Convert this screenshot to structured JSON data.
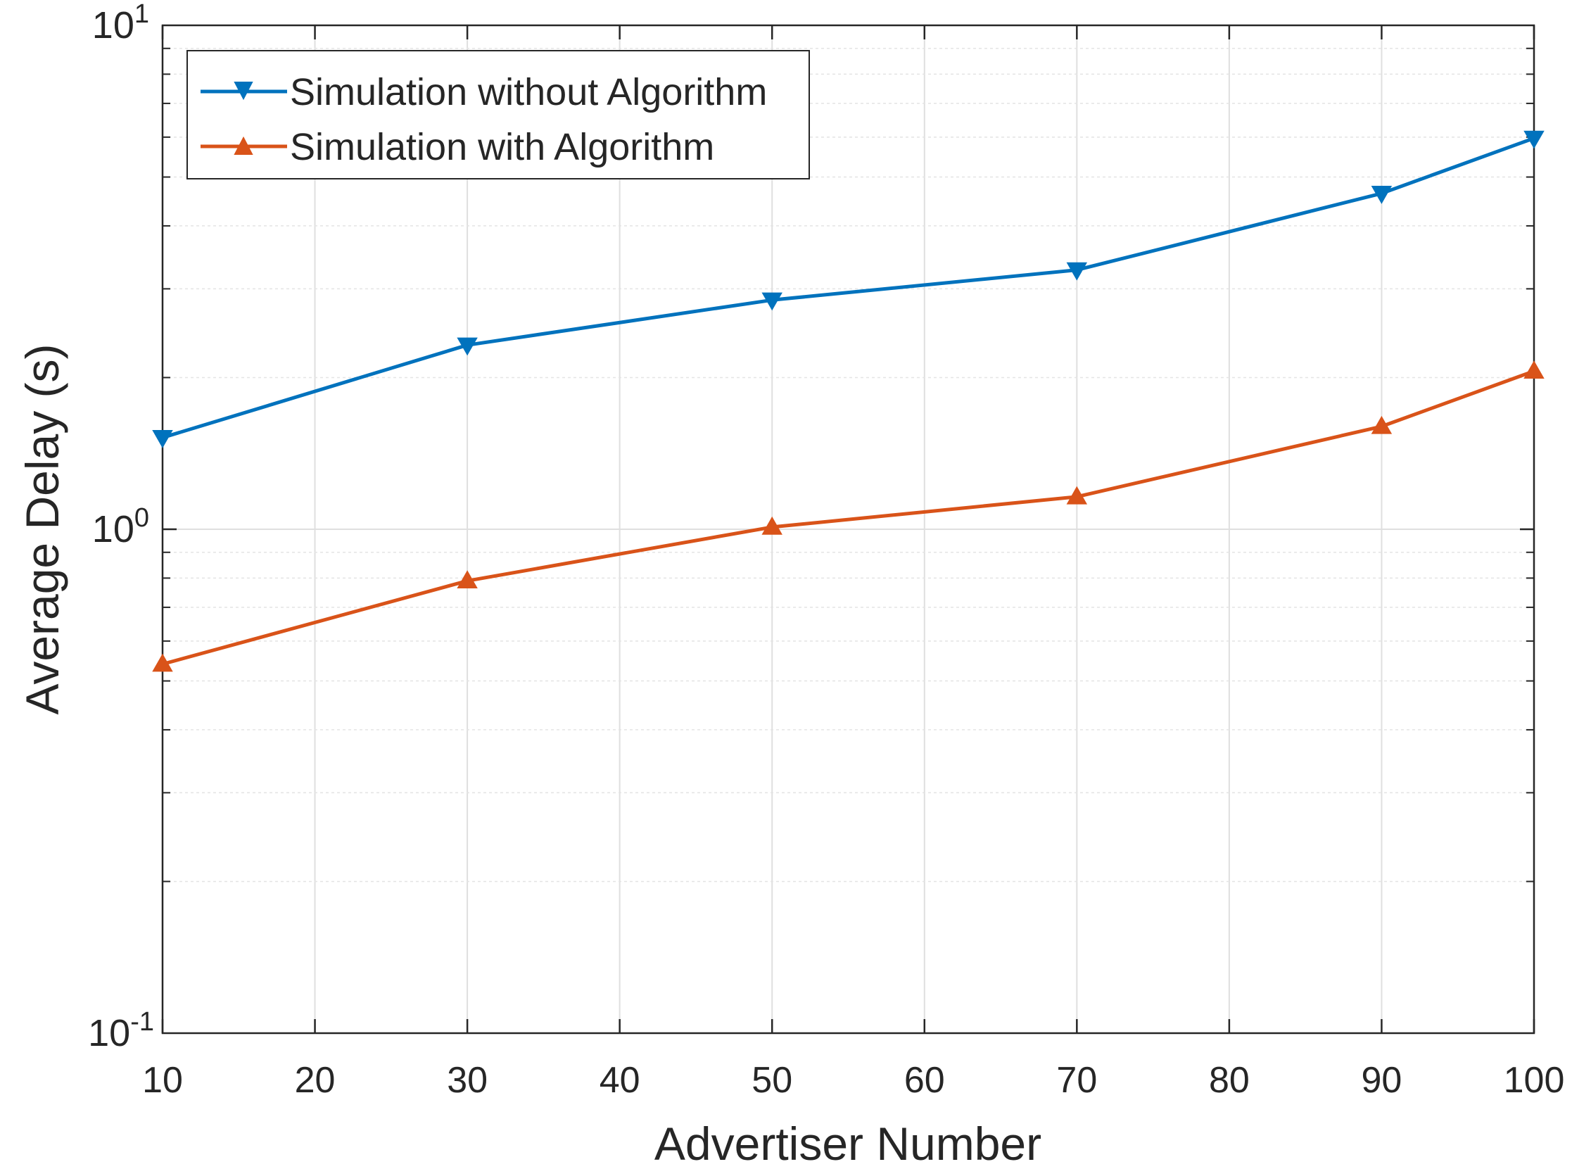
{
  "chart_data": {
    "type": "line",
    "title": "",
    "xlabel": "Advertiser Number",
    "ylabel": "Average Delay (s)",
    "xlim": [
      10,
      100
    ],
    "ylim": [
      0.1,
      10
    ],
    "yscale": "log",
    "grid": true,
    "x_ticks": [
      10,
      20,
      30,
      40,
      50,
      60,
      70,
      80,
      90,
      100
    ],
    "y_ticks": [
      {
        "value": 0.1,
        "base": "10",
        "exp": "-1"
      },
      {
        "value": 1,
        "base": "10",
        "exp": "0"
      },
      {
        "value": 10,
        "base": "10",
        "exp": "1"
      }
    ],
    "legend_position": "top-left",
    "series": [
      {
        "name": "Simulation without Algorithm",
        "color": "#0072BD",
        "marker": "triangle-down",
        "x": [
          10,
          30,
          50,
          70,
          90,
          100
        ],
        "y": [
          1.52,
          2.32,
          2.85,
          3.27,
          4.64,
          5.97
        ]
      },
      {
        "name": "Simulation with Algorithm",
        "color": "#D95319",
        "marker": "triangle-up",
        "x": [
          10,
          30,
          50,
          70,
          90,
          100
        ],
        "y": [
          0.54,
          0.79,
          1.01,
          1.16,
          1.6,
          2.06
        ]
      }
    ]
  }
}
